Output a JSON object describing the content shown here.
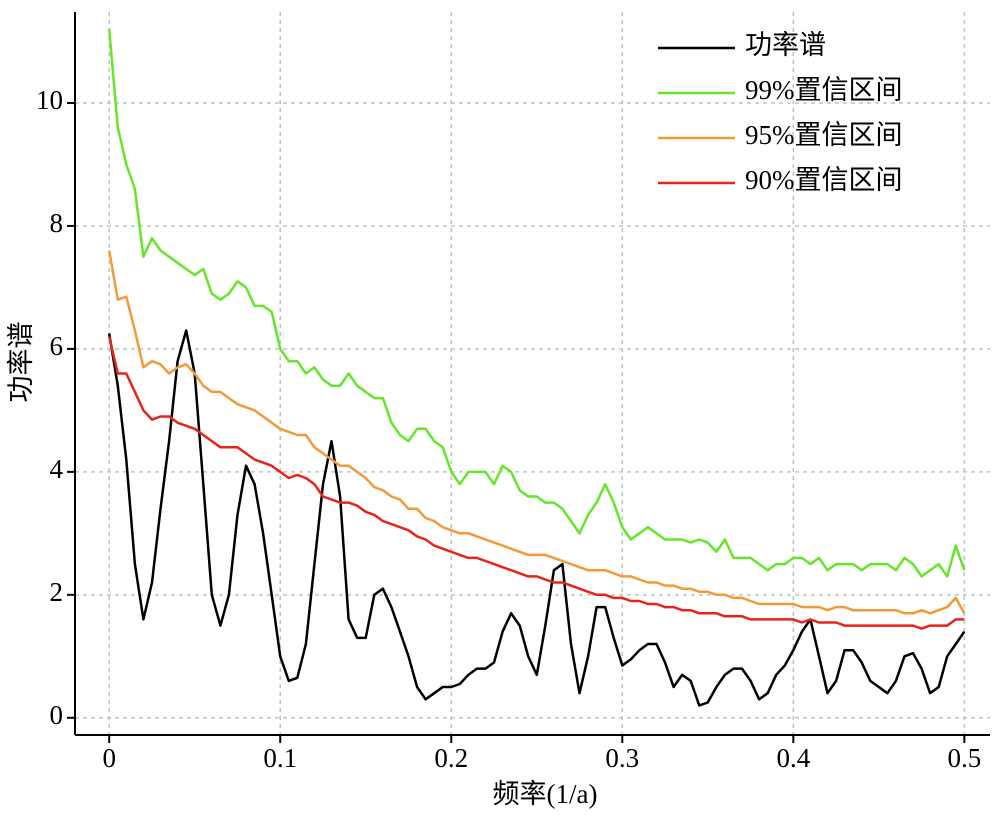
{
  "chart_data": {
    "type": "line",
    "xlabel": "频率(1/a)",
    "ylabel": "功率谱",
    "x": [
      0,
      0.005,
      0.01,
      0.015,
      0.02,
      0.025,
      0.03,
      0.035,
      0.04,
      0.045,
      0.05,
      0.055,
      0.06,
      0.065,
      0.07,
      0.075,
      0.08,
      0.085,
      0.09,
      0.095,
      0.1,
      0.105,
      0.11,
      0.115,
      0.12,
      0.125,
      0.13,
      0.135,
      0.14,
      0.145,
      0.15,
      0.155,
      0.16,
      0.165,
      0.17,
      0.175,
      0.18,
      0.185,
      0.19,
      0.195,
      0.2,
      0.205,
      0.21,
      0.215,
      0.22,
      0.225,
      0.23,
      0.235,
      0.24,
      0.245,
      0.25,
      0.255,
      0.26,
      0.265,
      0.27,
      0.275,
      0.28,
      0.285,
      0.29,
      0.295,
      0.3,
      0.305,
      0.31,
      0.315,
      0.32,
      0.325,
      0.33,
      0.335,
      0.34,
      0.345,
      0.35,
      0.355,
      0.36,
      0.365,
      0.37,
      0.375,
      0.38,
      0.385,
      0.39,
      0.395,
      0.4,
      0.405,
      0.41,
      0.415,
      0.42,
      0.425,
      0.43,
      0.435,
      0.44,
      0.445,
      0.45,
      0.455,
      0.46,
      0.465,
      0.47,
      0.475,
      0.48,
      0.485,
      0.49,
      0.495,
      0.5
    ],
    "series": [
      {
        "name": "功率谱",
        "color": "#000000",
        "values": [
          6.25,
          5.4,
          4.2,
          2.5,
          1.6,
          2.2,
          3.4,
          4.5,
          5.8,
          6.3,
          5.6,
          3.8,
          2.0,
          1.5,
          2.0,
          3.3,
          4.1,
          3.8,
          3.0,
          2.0,
          1.0,
          0.6,
          0.65,
          1.2,
          2.5,
          3.8,
          4.5,
          3.6,
          1.6,
          1.3,
          1.3,
          2.0,
          2.1,
          1.8,
          1.4,
          1.0,
          0.5,
          0.3,
          0.4,
          0.5,
          0.5,
          0.55,
          0.7,
          0.8,
          0.8,
          0.9,
          1.4,
          1.7,
          1.5,
          1.0,
          0.7,
          1.5,
          2.4,
          2.5,
          1.2,
          0.4,
          1.0,
          1.8,
          1.8,
          1.3,
          0.85,
          0.95,
          1.1,
          1.2,
          1.2,
          0.9,
          0.5,
          0.7,
          0.6,
          0.2,
          0.25,
          0.5,
          0.7,
          0.8,
          0.8,
          0.6,
          0.3,
          0.4,
          0.7,
          0.85,
          1.1,
          1.4,
          1.6,
          1.0,
          0.4,
          0.6,
          1.1,
          1.1,
          0.9,
          0.6,
          0.5,
          0.4,
          0.6,
          1.0,
          1.05,
          0.8,
          0.4,
          0.5,
          1.0,
          1.2,
          1.4
        ]
      },
      {
        "name": "99%置信区间",
        "color": "#66e62a",
        "values": [
          11.2,
          9.6,
          9.0,
          8.6,
          7.5,
          7.8,
          7.6,
          7.5,
          7.4,
          7.3,
          7.2,
          7.3,
          6.9,
          6.8,
          6.9,
          7.1,
          7.0,
          6.7,
          6.7,
          6.6,
          6.0,
          5.8,
          5.8,
          5.6,
          5.7,
          5.5,
          5.4,
          5.4,
          5.6,
          5.4,
          5.3,
          5.2,
          5.2,
          4.8,
          4.6,
          4.5,
          4.7,
          4.7,
          4.5,
          4.4,
          4.0,
          3.8,
          4.0,
          4.0,
          4.0,
          3.8,
          4.1,
          4.0,
          3.7,
          3.6,
          3.6,
          3.5,
          3.5,
          3.4,
          3.2,
          3.0,
          3.3,
          3.5,
          3.8,
          3.5,
          3.1,
          2.9,
          3.0,
          3.1,
          3.0,
          2.9,
          2.9,
          2.9,
          2.85,
          2.9,
          2.85,
          2.7,
          2.9,
          2.6,
          2.6,
          2.6,
          2.5,
          2.4,
          2.5,
          2.5,
          2.6,
          2.6,
          2.5,
          2.6,
          2.4,
          2.5,
          2.5,
          2.5,
          2.4,
          2.5,
          2.5,
          2.5,
          2.4,
          2.6,
          2.5,
          2.3,
          2.4,
          2.5,
          2.3,
          2.8,
          2.4
        ]
      },
      {
        "name": "95%置信区间",
        "color": "#f39a38",
        "values": [
          7.6,
          6.8,
          6.85,
          6.3,
          5.7,
          5.8,
          5.75,
          5.6,
          5.7,
          5.75,
          5.6,
          5.4,
          5.3,
          5.3,
          5.2,
          5.1,
          5.05,
          5.0,
          4.9,
          4.8,
          4.7,
          4.65,
          4.6,
          4.6,
          4.4,
          4.3,
          4.2,
          4.1,
          4.1,
          4.0,
          3.9,
          3.75,
          3.7,
          3.6,
          3.55,
          3.4,
          3.4,
          3.25,
          3.2,
          3.1,
          3.05,
          3.0,
          3.0,
          2.95,
          2.9,
          2.85,
          2.8,
          2.75,
          2.7,
          2.65,
          2.65,
          2.65,
          2.6,
          2.55,
          2.5,
          2.45,
          2.4,
          2.4,
          2.4,
          2.35,
          2.3,
          2.3,
          2.25,
          2.2,
          2.2,
          2.15,
          2.15,
          2.1,
          2.1,
          2.05,
          2.05,
          2.0,
          2.0,
          1.95,
          1.95,
          1.9,
          1.85,
          1.85,
          1.85,
          1.85,
          1.85,
          1.8,
          1.8,
          1.8,
          1.75,
          1.8,
          1.8,
          1.75,
          1.75,
          1.75,
          1.75,
          1.75,
          1.75,
          1.7,
          1.7,
          1.75,
          1.7,
          1.75,
          1.8,
          1.95,
          1.7
        ]
      },
      {
        "name": "90%置信区间",
        "color": "#e8231c",
        "values": [
          6.2,
          5.6,
          5.6,
          5.3,
          5.0,
          4.85,
          4.9,
          4.9,
          4.8,
          4.75,
          4.7,
          4.6,
          4.5,
          4.4,
          4.4,
          4.4,
          4.3,
          4.2,
          4.15,
          4.1,
          4.0,
          3.9,
          3.95,
          3.9,
          3.8,
          3.6,
          3.55,
          3.5,
          3.5,
          3.45,
          3.35,
          3.3,
          3.2,
          3.15,
          3.1,
          3.05,
          2.95,
          2.9,
          2.8,
          2.75,
          2.7,
          2.65,
          2.6,
          2.6,
          2.55,
          2.5,
          2.45,
          2.4,
          2.35,
          2.3,
          2.3,
          2.25,
          2.2,
          2.2,
          2.15,
          2.1,
          2.05,
          2.0,
          2.0,
          1.95,
          1.95,
          1.9,
          1.9,
          1.85,
          1.85,
          1.8,
          1.8,
          1.75,
          1.75,
          1.7,
          1.7,
          1.7,
          1.65,
          1.65,
          1.65,
          1.6,
          1.6,
          1.6,
          1.6,
          1.6,
          1.6,
          1.55,
          1.6,
          1.55,
          1.55,
          1.55,
          1.5,
          1.5,
          1.5,
          1.5,
          1.5,
          1.5,
          1.5,
          1.5,
          1.5,
          1.45,
          1.5,
          1.5,
          1.5,
          1.6,
          1.6
        ]
      }
    ],
    "xlim": [
      -0.02,
      0.515
    ],
    "ylim": [
      -0.28,
      11.48
    ],
    "xticks": [
      0,
      0.1,
      0.2,
      0.3,
      0.4,
      0.5
    ],
    "yticks": [
      0,
      2,
      4,
      6,
      8,
      10
    ],
    "grid": true,
    "legend": "upper right"
  }
}
